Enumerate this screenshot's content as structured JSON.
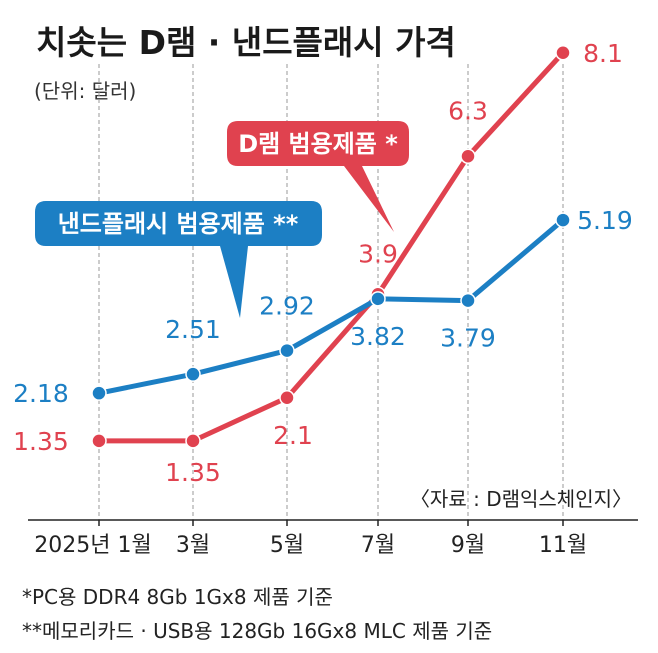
{
  "header": {
    "title": "치솟는 D램 · 낸드플래시 가격",
    "unit": "(단위: 달러)"
  },
  "source": "〈자료 : D램익스체인지〉",
  "footnotes": [
    "*PC용 DDR4 8Gb 1Gx8 제품 기준",
    "**메모리카드 · USB용 128Gb 16Gx8 MLC 제품 기준"
  ],
  "colors": {
    "dram": "#e0424f",
    "nand": "#1c7fc4",
    "grid": "#9a9a9a"
  },
  "chart_data": {
    "type": "line",
    "title": "치솟는 D램 · 낸드플래시 가격",
    "ylabel": "(단위: 달러)",
    "xlabel": "",
    "categories": [
      "2025년 1월",
      "3월",
      "5월",
      "7월",
      "9월",
      "11월"
    ],
    "ylim": [
      1,
      8.5
    ],
    "series": [
      {
        "name": "D램 범용제품 *",
        "key": "dram",
        "values": [
          1.35,
          1.35,
          2.1,
          3.9,
          6.3,
          8.1
        ],
        "labels": [
          "1.35",
          "1.35",
          "2.1",
          "3.9",
          "6.3",
          "8.1"
        ]
      },
      {
        "name": "낸드플래시 범용제품 **",
        "key": "nand",
        "values": [
          2.18,
          2.51,
          2.92,
          3.82,
          3.79,
          5.19
        ],
        "labels": [
          "2.18",
          "2.51",
          "2.92",
          "3.82",
          "3.79",
          "5.19"
        ]
      }
    ]
  }
}
